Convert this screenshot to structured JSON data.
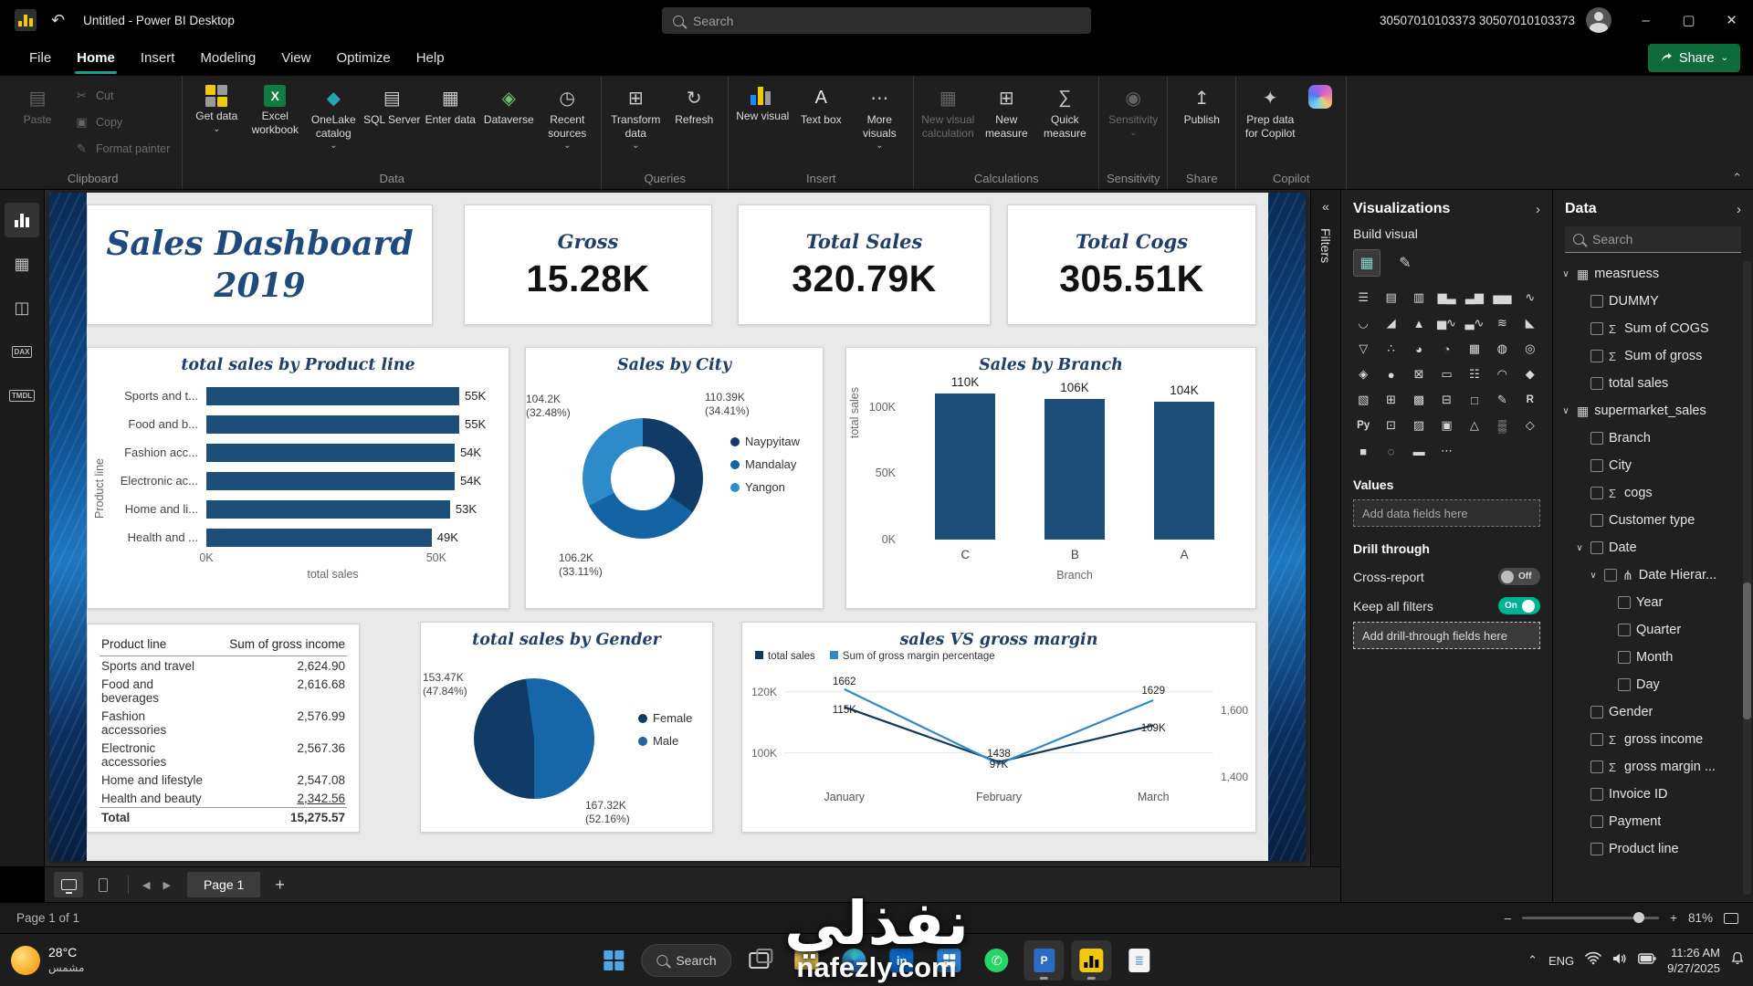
{
  "colors": {
    "accent_teal": "#14A390",
    "share_green": "#0E6B3A",
    "card_title": "#1F3E6B",
    "toggle_on": "#00B294",
    "navy": "#1C4E79"
  },
  "icons": {
    "undo": "↶",
    "minimize": "–",
    "maximize": "▢",
    "close": "✕",
    "chevron_down": "⌄",
    "chevron_up": "⌃",
    "collapse_left": "«",
    "expand_right": "›",
    "back": "◀",
    "forward": "▶",
    "add": "+",
    "sigma": "Σ",
    "expanded": "∨",
    "table": "▦",
    "hierarchy": "⋔",
    "build_tab": "▦",
    "format_tab": "✎",
    "zoom_out": "–",
    "zoom_in": "+",
    "share_arrow": "➦"
  },
  "titlebar": {
    "app_title": "Untitled - Power BI Desktop",
    "search_placeholder": "Search",
    "account_name": "30507010103373 30507010103373"
  },
  "menubar": {
    "items": [
      "File",
      "Home",
      "Insert",
      "Modeling",
      "View",
      "Optimize",
      "Help"
    ],
    "active_index": 1,
    "share_label": "Share"
  },
  "ribbon": {
    "groups": [
      {
        "label": "Clipboard",
        "buttons": [
          {
            "label": "Paste",
            "glyph": "▤",
            "disabled": true
          },
          {
            "label": "Cut",
            "glyph": "✂",
            "small": true,
            "disabled": true
          },
          {
            "label": "Copy",
            "glyph": "▣",
            "small": true,
            "disabled": true
          },
          {
            "label": "Format painter",
            "glyph": "✎",
            "small": true,
            "disabled": true
          }
        ]
      },
      {
        "label": "Data",
        "buttons": [
          {
            "label": "Get data",
            "icon": "grid4",
            "dropdown": true
          },
          {
            "label": "Excel workbook",
            "icon": "excel"
          },
          {
            "label": "OneLake catalog",
            "glyph": "◆",
            "color": "#23A6B4",
            "dropdown": true
          },
          {
            "label": "SQL Server",
            "glyph": "▤",
            "color": "#C9C9C9"
          },
          {
            "label": "Enter data",
            "glyph": "▦",
            "color": "#C9C9C9"
          },
          {
            "label": "Dataverse",
            "glyph": "◈",
            "color": "#6BBF6E"
          },
          {
            "label": "Recent sources",
            "glyph": "◷",
            "color": "#C9C9C9",
            "dropdown": true
          }
        ]
      },
      {
        "label": "Queries",
        "buttons": [
          {
            "label": "Transform data",
            "glyph": "⊞",
            "color": "#C9C9C9",
            "dropdown": true
          },
          {
            "label": "Refresh",
            "glyph": "↻",
            "color": "#C9C9C9"
          }
        ]
      },
      {
        "label": "Insert",
        "buttons": [
          {
            "label": "New visual",
            "icon": "chart"
          },
          {
            "label": "Text box",
            "glyph": "A",
            "color": "#E4E4E4"
          },
          {
            "label": "More visuals",
            "glyph": "⋯",
            "color": "#C9C9C9",
            "dropdown": true
          }
        ]
      },
      {
        "label": "Calculations",
        "buttons": [
          {
            "label": "New visual calculation",
            "glyph": "▦",
            "color": "#C9C9C9",
            "disabled": true
          },
          {
            "label": "New measure",
            "glyph": "⊞",
            "color": "#C9C9C9"
          },
          {
            "label": "Quick measure",
            "glyph": "∑",
            "color": "#C9C9C9"
          }
        ]
      },
      {
        "label": "Sensitivity",
        "buttons": [
          {
            "label": "Sensitivity",
            "glyph": "◉",
            "color": "#C9C9C9",
            "disabled": true,
            "dropdown": true
          }
        ]
      },
      {
        "label": "Share",
        "buttons": [
          {
            "label": "Publish",
            "glyph": "↥",
            "color": "#C9C9C9"
          }
        ]
      },
      {
        "label": "Copilot",
        "buttons": [
          {
            "label": "Prep data for Copilot",
            "glyph": "✦",
            "color": "#C9C9C9"
          },
          {
            "label": "",
            "icon": "copilot"
          }
        ]
      }
    ]
  },
  "left_nav": {
    "items": [
      {
        "name": "report-view",
        "kind": "chart",
        "active": true
      },
      {
        "name": "table-view",
        "glyph": "▦"
      },
      {
        "name": "model-view",
        "glyph": "◫"
      },
      {
        "name": "dax-query-view",
        "badge": "DAX"
      },
      {
        "name": "tmdl-view",
        "badge": "TMDL"
      }
    ]
  },
  "report": {
    "title_line1": "Sales Dashboard",
    "title_line2": "2019",
    "kpis": [
      {
        "title": "Gross",
        "value": "15.28K"
      },
      {
        "title": "Total Sales",
        "value": "320.79K"
      },
      {
        "title": "Total Cogs",
        "value": "305.51K"
      }
    ]
  },
  "chart_data": [
    {
      "type": "bar",
      "orientation": "horizontal",
      "title": "total sales by Product line",
      "categories": [
        "Sports and t...",
        "Food and b...",
        "Fashion acc...",
        "Electronic ac...",
        "Home and li...",
        "Health and ..."
      ],
      "values": [
        55,
        55,
        54,
        54,
        53,
        49
      ],
      "value_labels": [
        "55K",
        "55K",
        "54K",
        "54K",
        "53K",
        "49K"
      ],
      "xlabel": "total sales",
      "ylabel": "Product line",
      "xlim": [
        0,
        55
      ],
      "xticks": [
        {
          "label": "0K",
          "value": 0
        },
        {
          "label": "50K",
          "value": 50
        }
      ],
      "bar_color": "#1C4E79"
    },
    {
      "type": "donut",
      "title": "Sales by City",
      "slices": [
        {
          "label": "Naypyitaw",
          "value": 110.39,
          "display": "110.39K",
          "percent": "(34.41%)",
          "color": "#0F3B66"
        },
        {
          "label": "Mandalay",
          "value": 106.2,
          "display": "106.2K",
          "percent": "(33.11%)",
          "color": "#1464A5"
        },
        {
          "label": "Yangon",
          "value": 104.2,
          "display": "104.2K",
          "percent": "(32.48%)",
          "color": "#2E8BC9"
        }
      ]
    },
    {
      "type": "column",
      "title": "Sales by Branch",
      "categories": [
        "C",
        "B",
        "A"
      ],
      "values": [
        110,
        106,
        104
      ],
      "value_labels": [
        "110K",
        "106K",
        "104K"
      ],
      "ylim": [
        0,
        115
      ],
      "yticks": [
        {
          "label": "0K",
          "value": 0
        },
        {
          "label": "50K",
          "value": 50
        },
        {
          "label": "100K",
          "value": 100
        }
      ],
      "xlabel": "Branch",
      "ylabel": "total sales",
      "bar_color": "#1C4E79"
    },
    {
      "type": "table",
      "columns": [
        "Product line",
        "Sum of gross income"
      ],
      "rows": [
        [
          "Sports and travel",
          "2,624.90"
        ],
        [
          "Food and beverages",
          "2,616.68"
        ],
        [
          "Fashion accessories",
          "2,576.99"
        ],
        [
          "Electronic accessories",
          "2,567.36"
        ],
        [
          "Home and lifestyle",
          "2,547.08"
        ],
        [
          "Health and beauty",
          "2,342.56"
        ]
      ],
      "total_row": [
        "Total",
        "15,275.57"
      ]
    },
    {
      "type": "pie",
      "title": "total sales by Gender",
      "slices": [
        {
          "label": "Female",
          "value": 153.47,
          "display": "153.47K",
          "percent": "(47.84%)",
          "color": "#0F3B66"
        },
        {
          "label": "Male",
          "value": 167.32,
          "display": "167.32K",
          "percent": "(52.16%)",
          "color": "#1766A8"
        }
      ]
    },
    {
      "type": "line",
      "title": "sales VS gross margin",
      "categories": [
        "January",
        "February",
        "March"
      ],
      "series": [
        {
          "name": "total sales",
          "axis": "left",
          "color": "#12395B",
          "values": [
            115,
            97,
            109
          ],
          "labels": [
            "115K",
            "97K",
            "109K"
          ]
        },
        {
          "name": "Sum of gross margin percentage",
          "axis": "right",
          "color": "#2E8BC9",
          "values": [
            1662,
            1438,
            1629
          ],
          "labels": [
            "1662",
            "1438",
            "1629"
          ]
        }
      ],
      "left_axis": {
        "lim": [
          90,
          125
        ],
        "ticks": [
          {
            "label": "120K",
            "value": 120
          },
          {
            "label": "100K",
            "value": 100
          }
        ]
      },
      "right_axis": {
        "lim": [
          1380,
          1700
        ],
        "ticks": [
          {
            "label": "1,600",
            "value": 1600
          },
          {
            "label": "1,400",
            "value": 1400
          }
        ]
      }
    }
  ],
  "filters_panel": {
    "collapsed_label": "Filters"
  },
  "visualizations_panel": {
    "title": "Visualizations",
    "build_label": "Build visual",
    "grid": [
      "☰",
      "▤",
      "▥",
      "▆▃",
      "▃▆",
      "▅▅",
      "∿",
      "◡",
      "◢",
      "▲",
      "▅∿",
      "▃∿",
      "≋",
      "◣",
      "▽",
      "∴",
      "◕",
      "◔",
      "▦",
      "◍",
      "◎",
      "◈",
      "●",
      "⊠",
      "▭",
      "☷",
      "◠",
      "◆",
      "▧",
      "⊞",
      "▩",
      "⊟",
      "□",
      "✎",
      "R",
      "Py",
      "⊡",
      "▨",
      "▣",
      "△",
      "▒",
      "◇",
      "■",
      "◌",
      "▬",
      "⋯"
    ],
    "values_label": "Values",
    "add_fields_label": "Add data fields here",
    "drill_label": "Drill through",
    "cross_report_label": "Cross-report",
    "cross_report_state": "Off",
    "keep_filters_label": "Keep all filters",
    "keep_filters_state": "On",
    "add_drill_label": "Add drill-through fields here"
  },
  "data_panel": {
    "title": "Data",
    "search_placeholder": "Search",
    "tree": [
      {
        "label": "measruess",
        "table": true,
        "children": [
          {
            "label": "DUMMY"
          },
          {
            "label": "Sum of COGS",
            "sigma": true
          },
          {
            "label": "Sum of gross",
            "sigma": true
          },
          {
            "label": "total sales"
          }
        ]
      },
      {
        "label": "supermarket_sales",
        "table": true,
        "children": [
          {
            "label": "Branch"
          },
          {
            "label": "City"
          },
          {
            "label": "cogs",
            "sigma": true
          },
          {
            "label": "Customer type"
          },
          {
            "label": "Date",
            "children": [
              {
                "label": "Date Hierar...",
                "hierarchy": true,
                "children": [
                  {
                    "label": "Year"
                  },
                  {
                    "label": "Quarter"
                  },
                  {
                    "label": "Month"
                  },
                  {
                    "label": "Day"
                  }
                ]
              }
            ]
          },
          {
            "label": "Gender"
          },
          {
            "label": "gross income",
            "sigma": true
          },
          {
            "label": "gross margin ...",
            "sigma": true
          },
          {
            "label": "Invoice ID"
          },
          {
            "label": "Payment"
          },
          {
            "label": "Product line"
          }
        ]
      }
    ]
  },
  "page_bar": {
    "page_tab": "Page 1"
  },
  "status_bar": {
    "page_info": "Page 1 of 1",
    "zoom": "81%"
  },
  "taskbar": {
    "weather_temp": "28°C",
    "weather_desc": "مشمس",
    "search_label": "Search",
    "apps": [
      {
        "name": "task-view",
        "kind": "taskview"
      },
      {
        "name": "file-explorer",
        "kind": "folder"
      },
      {
        "name": "edge",
        "kind": "edge"
      },
      {
        "name": "linkedin",
        "kind": "linkedin",
        "text": "in"
      },
      {
        "name": "store",
        "kind": "store"
      },
      {
        "name": "whatsapp",
        "kind": "whatsapp"
      },
      {
        "name": "powerbi-service",
        "kind": "bluedoc",
        "open": true
      },
      {
        "name": "powerbi-desktop",
        "kind": "powerbi",
        "open": true
      },
      {
        "name": "notepad",
        "kind": "notepad"
      }
    ],
    "tray_lang": "ENG",
    "time": "11:26 AM",
    "date": "9/27/2025"
  },
  "watermark": {
    "arabic": "نفذلي",
    "latin": "nafezly.com"
  }
}
